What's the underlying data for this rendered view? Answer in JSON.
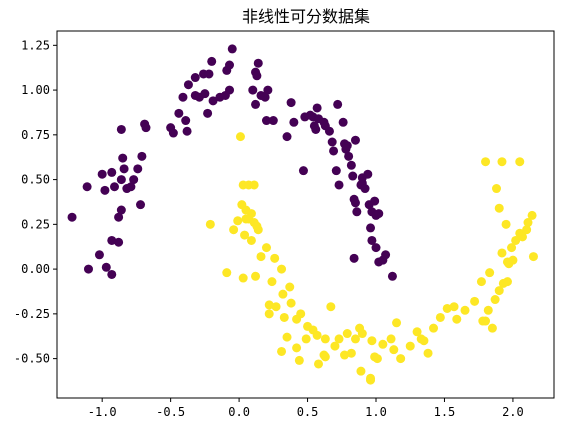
{
  "chart_data": {
    "type": "scatter",
    "title": "非线性可分数据集",
    "xlabel": "",
    "ylabel": "",
    "xlim": [
      -1.33,
      2.3
    ],
    "ylim": [
      -0.72,
      1.33
    ],
    "grid": false,
    "x_ticks": [
      -1.0,
      -0.5,
      0.0,
      0.5,
      1.0,
      1.5,
      2.0
    ],
    "x_tick_labels": [
      "-1.0",
      "-0.5",
      "0.0",
      "0.5",
      "1.0",
      "1.5",
      "2.0"
    ],
    "y_ticks": [
      -0.5,
      -0.25,
      0.0,
      0.25,
      0.5,
      0.75,
      1.0,
      1.25
    ],
    "y_tick_labels": [
      "-0.50",
      "-0.25",
      "0.00",
      "0.25",
      "0.50",
      "0.75",
      "1.00",
      "1.25"
    ],
    "colors": {
      "class0": "#440154",
      "class1": "#fde725",
      "axis": "#000000",
      "background": "#ffffff"
    },
    "series": [
      {
        "color": "#440154",
        "points": [
          [
            -1.22,
            0.29
          ],
          [
            -1.1,
            0.0
          ],
          [
            -1.02,
            0.08
          ],
          [
            -0.97,
            0.01
          ],
          [
            -0.93,
            -0.03
          ],
          [
            -1.11,
            0.46
          ],
          [
            -1.0,
            0.53
          ],
          [
            -0.98,
            0.44
          ],
          [
            -0.93,
            0.54
          ],
          [
            -0.91,
            0.46
          ],
          [
            -0.93,
            0.16
          ],
          [
            -0.88,
            0.15
          ],
          [
            -0.88,
            0.29
          ],
          [
            -0.86,
            0.33
          ],
          [
            -0.86,
            0.5
          ],
          [
            -0.85,
            0.62
          ],
          [
            -0.86,
            0.78
          ],
          [
            -0.84,
            0.56
          ],
          [
            -0.82,
            0.45
          ],
          [
            -0.79,
            0.46
          ],
          [
            -0.77,
            0.5
          ],
          [
            -0.74,
            0.56
          ],
          [
            -0.71,
            0.63
          ],
          [
            -0.69,
            0.81
          ],
          [
            -0.68,
            0.79
          ],
          [
            -0.72,
            0.36
          ],
          [
            -0.5,
            0.79
          ],
          [
            -0.48,
            0.76
          ],
          [
            -0.39,
            0.83
          ],
          [
            -0.38,
            0.77
          ],
          [
            -0.41,
            0.96
          ],
          [
            -0.44,
            0.87
          ],
          [
            -0.32,
            0.97
          ],
          [
            -0.29,
            0.96
          ],
          [
            -0.25,
            0.98
          ],
          [
            -0.23,
            0.87
          ],
          [
            -0.19,
            0.94
          ],
          [
            -0.14,
            0.96
          ],
          [
            -0.1,
            0.97
          ],
          [
            -0.09,
            1.11
          ],
          [
            -0.07,
            1.0
          ],
          [
            -0.07,
            1.14
          ],
          [
            -0.05,
            1.23
          ],
          [
            -0.2,
            1.16
          ],
          [
            -0.37,
            1.03
          ],
          [
            -0.32,
            1.07
          ],
          [
            -0.26,
            1.09
          ],
          [
            -0.22,
            1.09
          ],
          [
            0.1,
            1.0
          ],
          [
            0.12,
            0.92
          ],
          [
            0.12,
            1.1
          ],
          [
            0.14,
            1.15
          ],
          [
            0.13,
            1.08
          ],
          [
            0.16,
            0.97
          ],
          [
            0.19,
            0.96
          ],
          [
            0.21,
            1.0
          ],
          [
            0.2,
            0.83
          ],
          [
            0.25,
            0.83
          ],
          [
            0.35,
            0.74
          ],
          [
            0.38,
            0.93
          ],
          [
            0.4,
            0.82
          ],
          [
            0.48,
            0.85
          ],
          [
            0.52,
            0.86
          ],
          [
            0.54,
            0.85
          ],
          [
            0.57,
            0.9
          ],
          [
            0.62,
            0.82
          ],
          [
            0.66,
            0.77
          ],
          [
            0.68,
            0.71
          ],
          [
            0.69,
            0.66
          ],
          [
            0.77,
            0.7
          ],
          [
            0.79,
            0.69
          ],
          [
            0.82,
            0.58
          ],
          [
            0.85,
            0.72
          ],
          [
            0.83,
            0.52
          ],
          [
            0.85,
            0.37
          ],
          [
            0.86,
            0.32
          ],
          [
            0.94,
            0.53
          ],
          [
            0.95,
            0.36
          ],
          [
            0.97,
            0.32
          ],
          [
            0.96,
            0.23
          ],
          [
            1.0,
            0.3
          ],
          [
            0.97,
            0.16
          ],
          [
            1.0,
            0.12
          ],
          [
            1.02,
            0.31
          ],
          [
            1.02,
            0.04
          ],
          [
            1.05,
            0.05
          ],
          [
            0.9,
            0.48
          ],
          [
            0.89,
            0.47
          ],
          [
            0.92,
            0.45
          ],
          [
            0.72,
            0.92
          ],
          [
            0.76,
            0.82
          ],
          [
            0.78,
            0.67
          ],
          [
            0.56,
            0.78
          ],
          [
            0.47,
            0.55
          ],
          [
            0.9,
            0.51
          ],
          [
            0.99,
            0.38
          ],
          [
            0.8,
            0.63
          ],
          [
            0.84,
            0.39
          ],
          [
            0.84,
            0.06
          ],
          [
            0.55,
            0.8
          ],
          [
            0.58,
            0.84
          ],
          [
            1.12,
            -0.04
          ],
          [
            1.07,
            0.08
          ],
          [
            0.63,
            0.8
          ],
          [
            0.71,
            0.55
          ],
          [
            0.73,
            0.47
          ]
        ]
      },
      {
        "color": "#fde725",
        "points": [
          [
            0.01,
            0.74
          ],
          [
            0.03,
            0.47
          ],
          [
            0.07,
            0.47
          ],
          [
            0.11,
            0.47
          ],
          [
            0.02,
            0.36
          ],
          [
            0.05,
            0.33
          ],
          [
            0.05,
            0.28
          ],
          [
            0.07,
            0.28
          ],
          [
            0.09,
            0.31
          ],
          [
            0.11,
            0.26
          ],
          [
            0.13,
            0.24
          ],
          [
            0.14,
            0.22
          ],
          [
            0.09,
            0.16
          ],
          [
            0.04,
            0.19
          ],
          [
            -0.01,
            0.27
          ],
          [
            -0.21,
            0.25
          ],
          [
            -0.04,
            0.22
          ],
          [
            0.16,
            0.07
          ],
          [
            0.2,
            0.12
          ],
          [
            0.26,
            0.06
          ],
          [
            0.31,
            0.0
          ],
          [
            0.37,
            -0.1
          ],
          [
            0.38,
            -0.19
          ],
          [
            0.45,
            -0.25
          ],
          [
            0.5,
            -0.32
          ],
          [
            0.54,
            -0.34
          ],
          [
            0.57,
            -0.37
          ],
          [
            0.49,
            -0.39
          ],
          [
            0.42,
            -0.44
          ],
          [
            0.44,
            -0.51
          ],
          [
            0.62,
            -0.48
          ],
          [
            0.63,
            -0.39
          ],
          [
            0.7,
            -0.43
          ],
          [
            0.77,
            -0.48
          ],
          [
            0.82,
            -0.47
          ],
          [
            0.85,
            -0.39
          ],
          [
            0.88,
            -0.33
          ],
          [
            0.9,
            -0.36
          ],
          [
            0.97,
            -0.4
          ],
          [
            0.99,
            -0.49
          ],
          [
            1.01,
            -0.5
          ],
          [
            1.05,
            -0.42
          ],
          [
            1.11,
            -0.39
          ],
          [
            1.13,
            -0.45
          ],
          [
            1.18,
            -0.5
          ],
          [
            1.15,
            -0.3
          ],
          [
            1.25,
            -0.43
          ],
          [
            1.3,
            -0.35
          ],
          [
            1.33,
            -0.39
          ],
          [
            1.35,
            -0.4
          ],
          [
            1.38,
            -0.47
          ],
          [
            1.42,
            -0.33
          ],
          [
            1.47,
            -0.27
          ],
          [
            1.52,
            -0.22
          ],
          [
            1.57,
            -0.21
          ],
          [
            1.59,
            -0.28
          ],
          [
            1.65,
            -0.23
          ],
          [
            1.72,
            -0.18
          ],
          [
            1.8,
            -0.29
          ],
          [
            1.82,
            -0.23
          ],
          [
            1.87,
            -0.17
          ],
          [
            1.9,
            -0.12
          ],
          [
            1.93,
            -0.08
          ],
          [
            1.96,
            -0.07
          ],
          [
            1.97,
            0.03
          ],
          [
            2.0,
            0.05
          ],
          [
            1.99,
            0.12
          ],
          [
            2.02,
            0.16
          ],
          [
            2.05,
            0.2
          ],
          [
            2.07,
            0.18
          ],
          [
            2.1,
            0.22
          ],
          [
            2.14,
            0.3
          ],
          [
            1.92,
            0.09
          ],
          [
            1.9,
            0.34
          ],
          [
            1.88,
            0.45
          ],
          [
            1.92,
            0.6
          ],
          [
            1.8,
            0.6
          ],
          [
            2.05,
            0.6
          ],
          [
            1.95,
            0.25
          ],
          [
            2.15,
            0.07
          ],
          [
            2.11,
            0.26
          ],
          [
            1.85,
            -0.33
          ],
          [
            1.78,
            -0.29
          ],
          [
            1.77,
            -0.07
          ],
          [
            1.83,
            -0.02
          ],
          [
            1.96,
            0.04
          ],
          [
            0.27,
            -0.21
          ],
          [
            0.22,
            -0.2
          ],
          [
            0.33,
            -0.27
          ],
          [
            0.35,
            -0.38
          ],
          [
            0.31,
            -0.46
          ],
          [
            0.67,
            -0.21
          ],
          [
            0.73,
            -0.39
          ],
          [
            0.89,
            -0.57
          ],
          [
            0.96,
            -0.62
          ],
          [
            0.96,
            -0.61
          ],
          [
            0.79,
            -0.36
          ],
          [
            0.12,
            -0.04
          ],
          [
            0.03,
            -0.05
          ],
          [
            -0.09,
            -0.02
          ],
          [
            0.24,
            -0.07
          ],
          [
            0.22,
            -0.25
          ],
          [
            0.32,
            -0.14
          ],
          [
            0.42,
            -0.28
          ],
          [
            0.58,
            -0.53
          ],
          [
            0.63,
            -0.49
          ]
        ]
      }
    ]
  }
}
